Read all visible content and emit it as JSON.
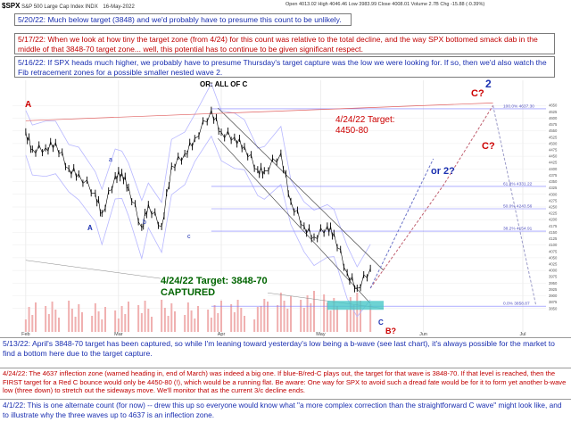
{
  "header": {
    "symbol": "$SPX",
    "description": "S&P 500 Large Cap Index  INDX",
    "date": "16-May-2022",
    "stats": "Open 4013.02  High 4046.46  Low 3983.99  Close 4008.01  Volume 2.7B  Chg -15.88 (-0.39%)"
  },
  "notes": {
    "n1": "5/20/22:  Much below target (3848) and we'd probably have to presume this count to be unlikely.",
    "n2": "5/17/22:  When we look at how tiny the target zone (from 4/24) for this count was relative to the total decline, and the way SPX bottomed smack dab in the middle of that 3848-70 target zone... well, this potential has to continue to be given significant respect.",
    "n3": "5/16/22:  If SPX heads much higher, we probably have to presume Thursday's target capture was the low we were looking for.  If so, then we'd also watch the Fib retracement zones for a possible smaller nested wave 2.",
    "n4": "5/13/22:  April's 3848-70 target has been captured, so while I'm leaning toward yesterday's low being a b-wave (see last chart), it's always possible for the market to find a bottom here due to the target capture.",
    "n5": "4/24/22:  The 4637 inflection zone (warned heading in, end of March) was indeed a big one.  If blue-B/red-C plays out, the target for that wave is 3848-70.  If that level is reached, then the FIRST target for a Red C bounce would only be 4450-80 (!), which would be a running flat.  Be aware:  One way for SPX to avoid such a dread fate would be for it to form yet another b-wave low (three down) to stretch out the sideways move.  We'll monitor that as the current 3/c decline ends.",
    "n6": "4/1/22:  This is one alternate count (for now) -- drew this up so everyone would know what \"a more complex correction than the straightforward C wave\" might look like, and to illustrate why the three waves up to 4637 is an inflection zone."
  },
  "annotations": {
    "or_all_of_c": "OR: ALL OF C",
    "target_upper": "4/24/22 Target:\n4450-80",
    "target_lower": "4/24/22 Target: 3848-70\nCAPTURED",
    "or_2": "or 2?",
    "c_q1": "C?",
    "c_q2": "C?",
    "two": "2",
    "a_big": "A",
    "a_blue": "A",
    "b_blue": "B",
    "b_q": "B?",
    "c_blue": "C",
    "small_a": "a",
    "small_b": "b",
    "small_c": "c"
  },
  "colors": {
    "price": "#000000",
    "upper_bollinger": "#b7b7ff",
    "lower_bollinger": "#b7b7ff",
    "fib_lines": "#7f7fff",
    "volume": "#f0b0b0",
    "red_label": "#cc0000",
    "blue_label": "#1a2fb0",
    "green_label": "#006400"
  },
  "chart_data": {
    "type": "line",
    "title": "$SPX S&P 500 Large Cap Index",
    "x_tick_labels": [
      "Feb",
      "Mar",
      "Apr",
      "May",
      "Jun",
      "Jul"
    ],
    "ylim": [
      3800,
      4700
    ],
    "fib_levels": [
      {
        "label": "100.0% 4637.30",
        "value": 4637
      },
      {
        "label": "61.8% 4331.22",
        "value": 4331
      },
      {
        "label": "50.0% 4243.56",
        "value": 4243
      },
      {
        "label": "38.2% 4154.91",
        "value": 4155
      },
      {
        "label": "0.0% 3858.87",
        "value": 3859
      }
    ],
    "series": [
      {
        "name": "",
        "x": [
          "2022-02-01",
          "2022-02-03",
          "2022-02-07",
          "2022-02-10",
          "2022-02-14",
          "2022-02-17",
          "2022-02-22",
          "2022-02-24",
          "2022-02-28",
          "2022-03-02",
          "2022-03-04",
          "2022-03-08",
          "2022-03-10",
          "2022-03-14",
          "2022-03-17",
          "2022-03-21",
          "2022-03-24",
          "2022-03-29",
          "2022-04-01",
          "2022-04-05",
          "2022-04-08",
          "2022-04-12",
          "2022-04-14",
          "2022-04-19",
          "2022-04-22",
          "2022-04-26",
          "2022-04-29",
          "2022-05-03",
          "2022-05-05",
          "2022-05-09",
          "2022-05-12",
          "2022-05-16"
        ],
        "values": [
          4546,
          4478,
          4483,
          4504,
          4401,
          4380,
          4304,
          4225,
          4373,
          4386,
          4328,
          4170,
          4260,
          4173,
          4411,
          4461,
          4520,
          4631,
          4545,
          4525,
          4488,
          4397,
          4393,
          4462,
          4272,
          4175,
          4132,
          4175,
          4146,
          3991,
          3930,
          4008
        ]
      }
    ],
    "projections": [
      {
        "name": "",
        "x": [
          "2022-05-16",
          "2022-06-07",
          "2022-06-22"
        ],
        "values": [
          3930,
          4335,
          4650
        ]
      },
      {
        "name": "",
        "x": [
          "2022-05-16",
          "2022-06-04"
        ],
        "values": [
          3930,
          4440
        ]
      },
      {
        "name": "",
        "x": [
          "2022-06-22",
          "2022-07-05"
        ],
        "values": [
          4650,
          3860
        ]
      }
    ]
  }
}
